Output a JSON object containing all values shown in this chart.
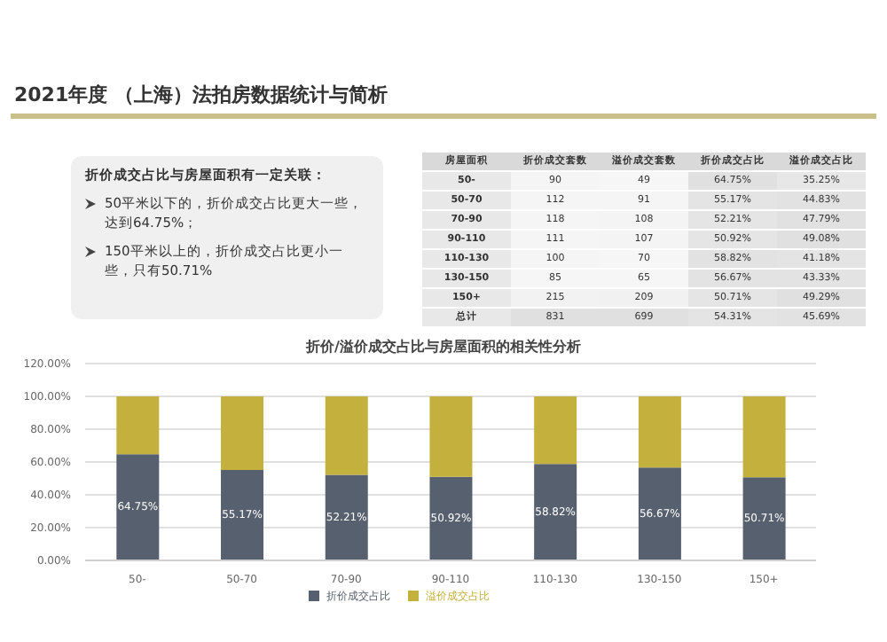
{
  "chart_data": [
    {
      "type": "other",
      "title": "2021年度 （上海）法拍房数据统计与简析",
      "annotations": [
        "折价成交占比与房屋面积有一定关联：",
        "50平米以下的，折价成交占比更大一些，达到64.75%；",
        "150平米以上的，折价成交占比更小一些，只有50.71%"
      ]
    },
    {
      "type": "heatmap",
      "ylabel": "房屋面积",
      "categories": [
        "折价成交套数",
        "溢价成交套数",
        "折价成交占比",
        "溢价成交占比"
      ],
      "y_categories": [
        "50-",
        "50-70",
        "70-90",
        "90-110",
        "110-130",
        "130-150",
        "150+",
        "总计"
      ],
      "cells": [
        [
          90,
          49,
          64.75,
          35.25
        ],
        [
          112,
          91,
          55.17,
          44.83
        ],
        [
          118,
          108,
          52.21,
          47.79
        ],
        [
          111,
          107,
          50.92,
          49.08
        ],
        [
          100,
          70,
          58.82,
          41.18
        ],
        [
          85,
          65,
          56.67,
          43.33
        ],
        [
          215,
          209,
          50.71,
          49.29
        ],
        [
          831,
          699,
          54.31,
          45.69
        ]
      ],
      "cell_labels": [
        [
          "90",
          "49",
          "64.75%",
          "35.25%"
        ],
        [
          "112",
          "91",
          "55.17%",
          "44.83%"
        ],
        [
          "118",
          "108",
          "52.21%",
          "47.79%"
        ],
        [
          "111",
          "107",
          "50.92%",
          "49.08%"
        ],
        [
          "100",
          "70",
          "58.82%",
          "41.18%"
        ],
        [
          "85",
          "65",
          "56.67%",
          "43.33%"
        ],
        [
          "215",
          "209",
          "50.71%",
          "49.29%"
        ],
        [
          "831",
          "699",
          "54.31%",
          "45.69%"
        ]
      ]
    },
    {
      "type": "bar",
      "title": "折价/溢价成交占比与房屋面积的相关性分析",
      "stacked": true,
      "categories": [
        "50-",
        "50-70",
        "70-90",
        "90-110",
        "110-130",
        "130-150",
        "150+"
      ],
      "series": [
        {
          "name": "折价成交占比",
          "color": "#56606f",
          "values": [
            64.75,
            55.17,
            52.21,
            50.92,
            58.82,
            56.67,
            50.71
          ],
          "value_labels": [
            "64.75%",
            "55.17%",
            "52.21%",
            "50.92%",
            "58.82%",
            "56.67%",
            "50.71%"
          ]
        },
        {
          "name": "溢价成交占比",
          "color": "#c4b03c",
          "values": [
            35.25,
            44.83,
            47.79,
            49.08,
            41.18,
            43.33,
            49.29
          ]
        }
      ],
      "ylim": [
        0,
        120
      ],
      "yticks": [
        {
          "value": 0,
          "label": "0.00%"
        },
        {
          "value": 20,
          "label": "20.00%"
        },
        {
          "value": 40,
          "label": "40.00%"
        },
        {
          "value": 60,
          "label": "60.00%"
        },
        {
          "value": 80,
          "label": "80.00%"
        },
        {
          "value": 100,
          "label": "100.00%"
        },
        {
          "value": 120,
          "label": "120.00%"
        }
      ],
      "grid": "y",
      "legend": "bottom"
    }
  ]
}
